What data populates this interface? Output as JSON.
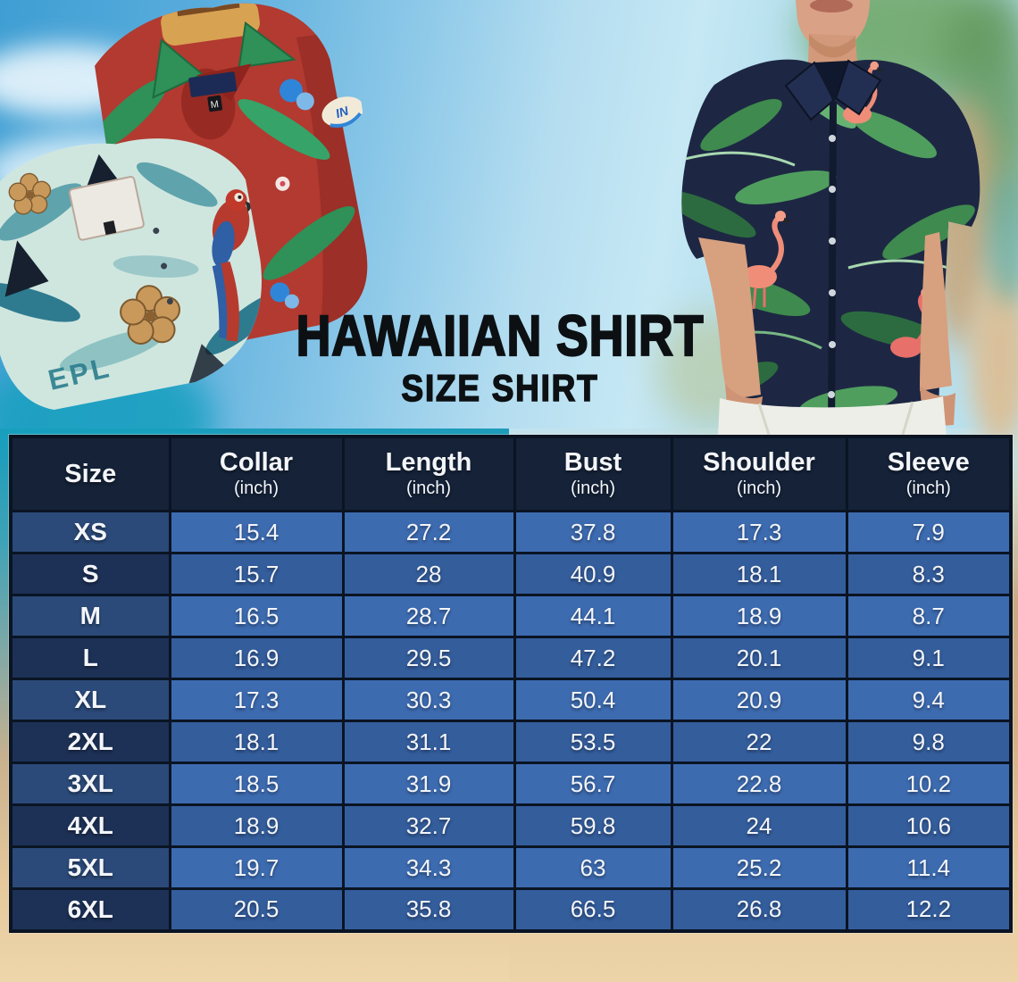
{
  "title": {
    "main": "HAWAIIAN SHIRT",
    "sub": "SIZE SHIRT"
  },
  "table": {
    "headers": [
      {
        "label": "Size",
        "unit": ""
      },
      {
        "label": "Collar",
        "unit": "(inch)"
      },
      {
        "label": "Length",
        "unit": "(inch)"
      },
      {
        "label": "Bust",
        "unit": "(inch)"
      },
      {
        "label": "Shoulder",
        "unit": "(inch)"
      },
      {
        "label": "Sleeve",
        "unit": "(inch)"
      }
    ],
    "rows": [
      {
        "size": "XS",
        "values": [
          "15.4",
          "27.2",
          "37.8",
          "17.3",
          "7.9"
        ]
      },
      {
        "size": "S",
        "values": [
          "15.7",
          "28",
          "40.9",
          "18.1",
          "8.3"
        ]
      },
      {
        "size": "M",
        "values": [
          "16.5",
          "28.7",
          "44.1",
          "18.9",
          "8.7"
        ]
      },
      {
        "size": "L",
        "values": [
          "16.9",
          "29.5",
          "47.2",
          "20.1",
          "9.1"
        ]
      },
      {
        "size": "XL",
        "values": [
          "17.3",
          "30.3",
          "50.4",
          "20.9",
          "9.4"
        ]
      },
      {
        "size": "2XL",
        "values": [
          "18.1",
          "31.1",
          "53.5",
          "22",
          "9.8"
        ]
      },
      {
        "size": "3XL",
        "values": [
          "18.5",
          "31.9",
          "56.7",
          "22.8",
          "10.2"
        ]
      },
      {
        "size": "4XL",
        "values": [
          "18.9",
          "32.7",
          "59.8",
          "24",
          "10.6"
        ]
      },
      {
        "size": "5XL",
        "values": [
          "19.7",
          "34.3",
          "63",
          "25.2",
          "11.4"
        ]
      },
      {
        "size": "6XL",
        "values": [
          "20.5",
          "35.8",
          "66.5",
          "26.8",
          "12.2"
        ]
      }
    ]
  },
  "chart_data": {
    "type": "table",
    "title": "Hawaiian Shirt Size Shirt",
    "columns": [
      "Size",
      "Collar (inch)",
      "Length (inch)",
      "Bust (inch)",
      "Shoulder (inch)",
      "Sleeve (inch)"
    ],
    "rows": [
      [
        "XS",
        15.4,
        27.2,
        37.8,
        17.3,
        7.9
      ],
      [
        "S",
        15.7,
        28,
        40.9,
        18.1,
        8.3
      ],
      [
        "M",
        16.5,
        28.7,
        44.1,
        18.9,
        8.7
      ],
      [
        "L",
        16.9,
        29.5,
        47.2,
        20.1,
        9.1
      ],
      [
        "XL",
        17.3,
        30.3,
        50.4,
        20.9,
        9.4
      ],
      [
        "2XL",
        18.1,
        31.1,
        53.5,
        22,
        9.8
      ],
      [
        "3XL",
        18.5,
        31.9,
        56.7,
        22.8,
        10.2
      ],
      [
        "4XL",
        18.9,
        32.7,
        59.8,
        24,
        10.6
      ],
      [
        "5XL",
        19.7,
        34.3,
        63,
        25.2,
        11.4
      ],
      [
        "6XL",
        20.5,
        35.8,
        66.5,
        26.8,
        12.2
      ]
    ]
  },
  "decor": {
    "red_shirt_neck_tag": "M",
    "red_shirt_sleeve_logo": "IN",
    "teal_shirt_print": "EPL"
  },
  "colors": {
    "header_bg": "#152238",
    "row_light_data": "#3d6bb0",
    "row_light_size": "#2b4a79",
    "row_dark_data": "#345d9c",
    "row_dark_size": "#1d3156",
    "grid_line": "#0a1423",
    "table_text": "#f3f5f9",
    "title_text": "#0c1013",
    "sky": "#8cc8e8",
    "ocean": "#1d9cba",
    "sand": "#ecd4a8",
    "red_shirt": "#b23a30",
    "teal_shirt": "#cfe6df",
    "navy_shirt": "#1d2743"
  }
}
